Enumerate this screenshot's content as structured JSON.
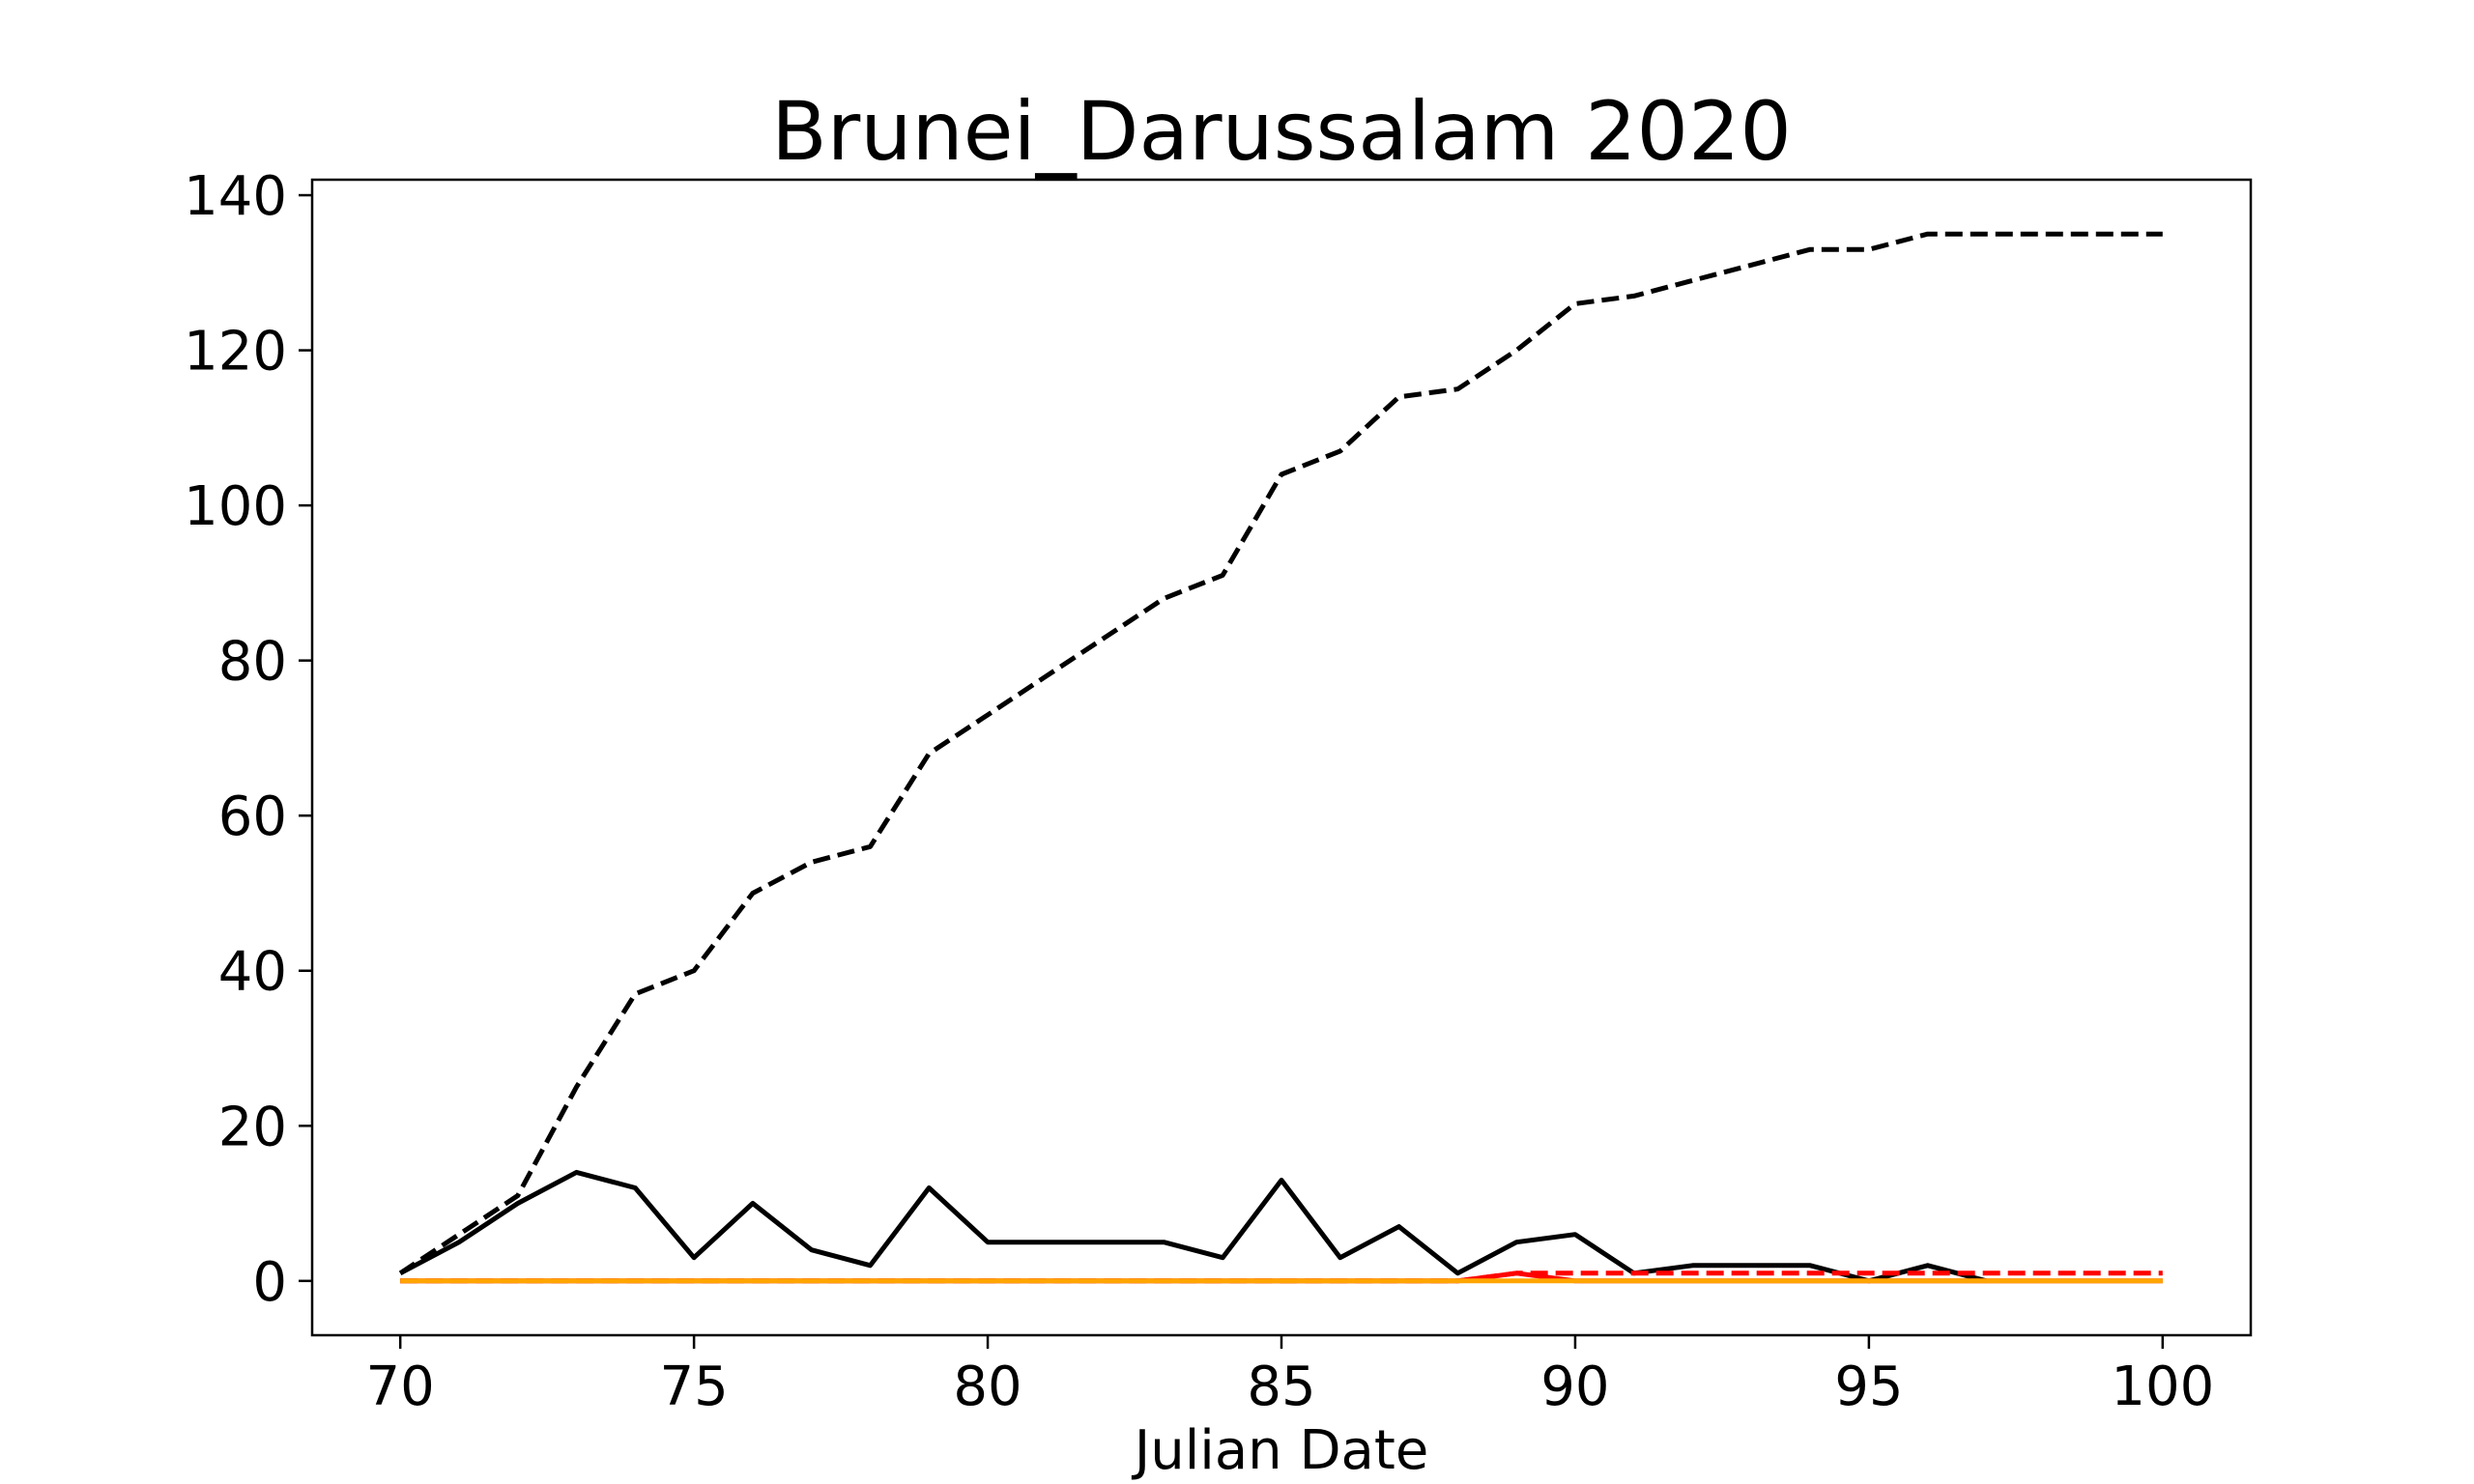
{
  "chart_data": {
    "type": "line",
    "title": "Brunei_Darussalam 2020",
    "xlabel": "Julian Date",
    "ylabel": "",
    "xlim": [
      68.5,
      101.5
    ],
    "ylim": [
      -7,
      142
    ],
    "xticks": [
      70,
      75,
      80,
      85,
      90,
      95,
      100
    ],
    "yticks": [
      0,
      20,
      40,
      60,
      80,
      100,
      120,
      140
    ],
    "grid": false,
    "legend": "none",
    "series": [
      {
        "color": "#000000",
        "style": "dashed",
        "x": [
          70,
          71,
          72,
          73,
          74,
          75,
          76,
          77,
          78,
          79,
          80,
          81,
          82,
          83,
          84,
          85,
          86,
          87,
          88,
          89,
          90,
          91,
          92,
          93,
          94,
          95,
          96,
          97,
          98,
          99,
          100
        ],
        "y": [
          1,
          6,
          11,
          25,
          37,
          40,
          50,
          54,
          56,
          68,
          73,
          78,
          83,
          88,
          91,
          104,
          107,
          114,
          115,
          120,
          126,
          127,
          129,
          131,
          133,
          133,
          135,
          135,
          135,
          135,
          135
        ]
      },
      {
        "color": "#000000",
        "style": "solid",
        "x": [
          70,
          71,
          72,
          73,
          74,
          75,
          76,
          77,
          78,
          79,
          80,
          81,
          82,
          83,
          84,
          85,
          86,
          87,
          88,
          89,
          90,
          91,
          92,
          93,
          94,
          95,
          96,
          97
        ],
        "y": [
          1,
          5,
          10,
          14,
          12,
          3,
          10,
          4,
          2,
          12,
          5,
          5,
          5,
          5,
          3,
          13,
          3,
          7,
          1,
          5,
          6,
          1,
          2,
          2,
          2,
          0,
          2,
          0
        ]
      },
      {
        "color": "#ff0000",
        "style": "dashed",
        "x": [
          70,
          88,
          89,
          90,
          91,
          92,
          93,
          94,
          95,
          96,
          97,
          98,
          99,
          100
        ],
        "y": [
          0,
          0,
          1,
          1,
          1,
          1,
          1,
          1,
          1,
          1,
          1,
          1,
          1,
          1
        ]
      },
      {
        "color": "#ff0000",
        "style": "solid",
        "x": [
          70,
          88,
          89,
          90,
          100
        ],
        "y": [
          0,
          0,
          1,
          0,
          0
        ]
      },
      {
        "color": "#ffa500",
        "style": "solid",
        "x": [
          70,
          100
        ],
        "y": [
          0,
          0
        ]
      }
    ]
  }
}
